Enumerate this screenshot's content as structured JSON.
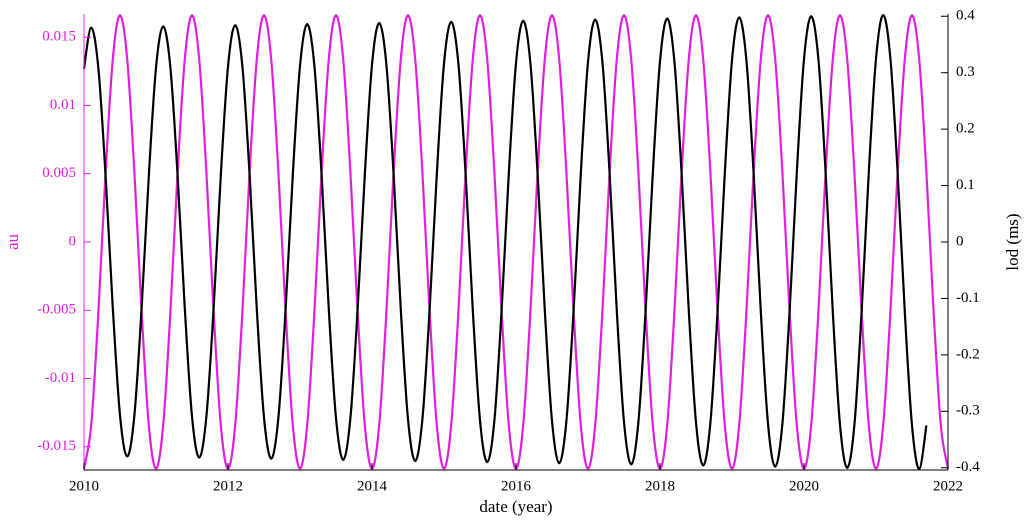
{
  "chart_data": {
    "type": "line",
    "x_label": "date (year)",
    "y_label": "au",
    "y2_label": "lod (ms)",
    "xlim": [
      2010,
      2022
    ],
    "xticks": [
      2010,
      2012,
      2014,
      2016,
      2018,
      2020,
      2022
    ],
    "ylim": [
      -0.0167,
      0.0167
    ],
    "yticks": [
      -0.015,
      -0.01,
      -0.005,
      0,
      0.005,
      0.01,
      0.015
    ],
    "y_color": "#e020e0",
    "y2lim": [
      -0.404,
      0.404
    ],
    "y2ticks": [
      -0.4,
      -0.3,
      -0.2,
      -0.1,
      0,
      0.1,
      0.2,
      0.3,
      0.4
    ],
    "y2_color": "#000000",
    "grid": false,
    "x": [
      2010,
      2010.1,
      2010.2,
      2010.3,
      2010.4,
      2010.5,
      2010.6,
      2010.7,
      2010.8,
      2010.9,
      2011,
      2011.1,
      2011.2,
      2011.3,
      2011.4,
      2011.5,
      2011.6,
      2011.7,
      2011.8,
      2011.9,
      2012,
      2012.1,
      2012.2,
      2012.3,
      2012.4,
      2012.5,
      2012.6,
      2012.7,
      2012.8,
      2012.9,
      2013,
      2013.1,
      2013.2,
      2013.3,
      2013.4,
      2013.5,
      2013.6,
      2013.7,
      2013.8,
      2013.9,
      2014,
      2014.1,
      2014.2,
      2014.3,
      2014.4,
      2014.5,
      2014.6,
      2014.7,
      2014.8,
      2014.9,
      2015,
      2015.1,
      2015.2,
      2015.3,
      2015.4,
      2015.5,
      2015.6,
      2015.7,
      2015.8,
      2015.9,
      2016,
      2016.1,
      2016.2,
      2016.3,
      2016.4,
      2016.5,
      2016.6,
      2016.7,
      2016.8,
      2016.9,
      2017,
      2017.1,
      2017.2,
      2017.3,
      2017.4,
      2017.5,
      2017.6,
      2017.7,
      2017.8,
      2017.9,
      2018,
      2018.1,
      2018.2,
      2018.3,
      2018.4,
      2018.5,
      2018.6,
      2018.7,
      2018.8,
      2018.9,
      2019,
      2019.1,
      2019.2,
      2019.3,
      2019.4,
      2019.5,
      2019.6,
      2019.7,
      2019.8,
      2019.9,
      2020,
      2020.1,
      2020.2,
      2020.3,
      2020.4,
      2020.5,
      2020.6,
      2020.7,
      2020.8,
      2020.9,
      2021,
      2021.1,
      2021.2,
      2021.3,
      2021.4,
      2021.5,
      2021.6,
      2021.7,
      2021.8,
      2021.9,
      2022
    ],
    "series": [
      {
        "color": "#e020e0",
        "values": [
          -0.0166,
          -0.0134,
          -0.0051,
          0.0051,
          0.0134,
          0.0166,
          0.0134,
          0.0051,
          -0.0051,
          -0.0134,
          -0.0166,
          -0.0134,
          -0.0051,
          0.0051,
          0.0134,
          0.0166,
          0.0134,
          0.0051,
          -0.0051,
          -0.0134,
          -0.0166,
          -0.0134,
          -0.0051,
          0.0051,
          0.0134,
          0.0166,
          0.0134,
          0.0051,
          -0.0051,
          -0.0134,
          -0.0166,
          -0.0134,
          -0.0051,
          0.0051,
          0.0134,
          0.0166,
          0.0134,
          0.0051,
          -0.0051,
          -0.0134,
          -0.0166,
          -0.0134,
          -0.0051,
          0.0051,
          0.0134,
          0.0166,
          0.0134,
          0.0051,
          -0.0051,
          -0.0134,
          -0.0166,
          -0.0134,
          -0.0051,
          0.0051,
          0.0134,
          0.0166,
          0.0134,
          0.0051,
          -0.0051,
          -0.0134,
          -0.0166,
          -0.0134,
          -0.0051,
          0.0051,
          0.0134,
          0.0166,
          0.0134,
          0.0051,
          -0.0051,
          -0.0134,
          -0.0166,
          -0.0134,
          -0.0051,
          0.0051,
          0.0134,
          0.0166,
          0.0134,
          0.0051,
          -0.0051,
          -0.0134,
          -0.0166,
          -0.0134,
          -0.0051,
          0.0051,
          0.0134,
          0.0166,
          0.0134,
          0.0051,
          -0.0051,
          -0.0134,
          -0.0166,
          -0.0134,
          -0.0051,
          0.0051,
          0.0134,
          0.0166,
          0.0134,
          0.0051,
          -0.0051,
          -0.0134,
          -0.0166,
          -0.0134,
          -0.0051,
          0.0051,
          0.0134,
          0.0166,
          0.0134,
          0.0051,
          -0.0051,
          -0.0134,
          -0.0166,
          -0.0134,
          -0.0051,
          0.0051,
          0.0134,
          0.0166,
          0.0134,
          0.0051,
          -0.0051,
          -0.0134,
          -0.0166
        ]
      },
      {
        "color": "#000000",
        "axis": "y2",
        "values": [
          0.307,
          0.38,
          0.307,
          0.117,
          -0.117,
          -0.307,
          -0.38,
          -0.307,
          -0.117,
          0.117,
          0.309,
          0.382,
          0.309,
          0.118,
          -0.118,
          -0.309,
          -0.382,
          -0.309,
          -0.118,
          0.118,
          0.311,
          0.384,
          0.311,
          0.119,
          -0.119,
          -0.311,
          -0.384,
          -0.311,
          -0.119,
          0.119,
          0.312,
          0.386,
          0.312,
          0.119,
          -0.119,
          -0.312,
          -0.386,
          -0.312,
          -0.119,
          0.119,
          0.314,
          0.388,
          0.314,
          0.12,
          -0.12,
          -0.314,
          -0.388,
          -0.314,
          -0.12,
          0.12,
          0.316,
          0.39,
          0.316,
          0.121,
          -0.121,
          -0.316,
          -0.39,
          -0.316,
          -0.121,
          0.121,
          0.317,
          0.392,
          0.317,
          0.121,
          -0.121,
          -0.317,
          -0.392,
          -0.317,
          -0.121,
          0.121,
          0.319,
          0.394,
          0.319,
          0.122,
          -0.122,
          -0.319,
          -0.394,
          -0.319,
          -0.122,
          0.122,
          0.32,
          0.396,
          0.32,
          0.122,
          -0.122,
          -0.32,
          -0.396,
          -0.32,
          -0.122,
          0.122,
          0.322,
          0.398,
          0.322,
          0.123,
          -0.123,
          -0.322,
          -0.398,
          -0.322,
          -0.123,
          0.123,
          0.324,
          0.4,
          0.324,
          0.124,
          -0.124,
          -0.324,
          -0.4,
          -0.324,
          -0.124,
          0.124,
          0.325,
          0.402,
          0.325,
          0.124,
          -0.124,
          -0.325,
          -0.402,
          -0.325,
          null,
          null,
          null
        ]
      }
    ]
  }
}
